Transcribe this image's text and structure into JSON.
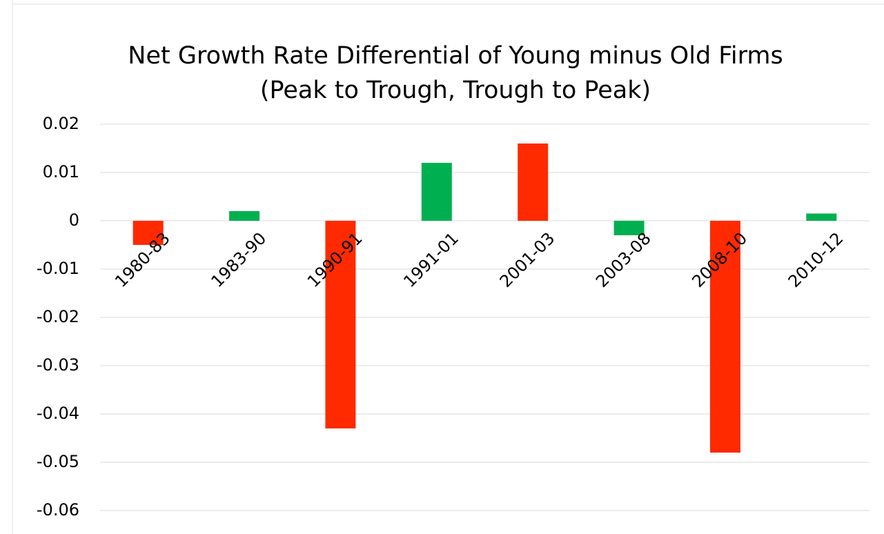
{
  "chart_data": {
    "type": "bar",
    "title": "Net Growth Rate Differential of Young minus Old Firms",
    "subtitle": "(Peak to Trough, Trough to Peak)",
    "categories": [
      "1980-83",
      "1983-90",
      "1990-91",
      "1991-01",
      "2001-03",
      "2003-08",
      "2008-10",
      "2010-12"
    ],
    "values": [
      -0.005,
      0.002,
      -0.043,
      0.012,
      0.016,
      -0.003,
      -0.048,
      0.0015
    ],
    "colors": [
      "#ff2a00",
      "#00b050",
      "#ff2a00",
      "#00b050",
      "#ff2a00",
      "#00b050",
      "#ff2a00",
      "#00b050"
    ],
    "ylim": [
      -0.06,
      0.02
    ],
    "yticks": [
      -0.06,
      -0.05,
      -0.04,
      -0.03,
      -0.02,
      -0.01,
      0,
      0.01,
      0.02
    ],
    "grid": true
  }
}
